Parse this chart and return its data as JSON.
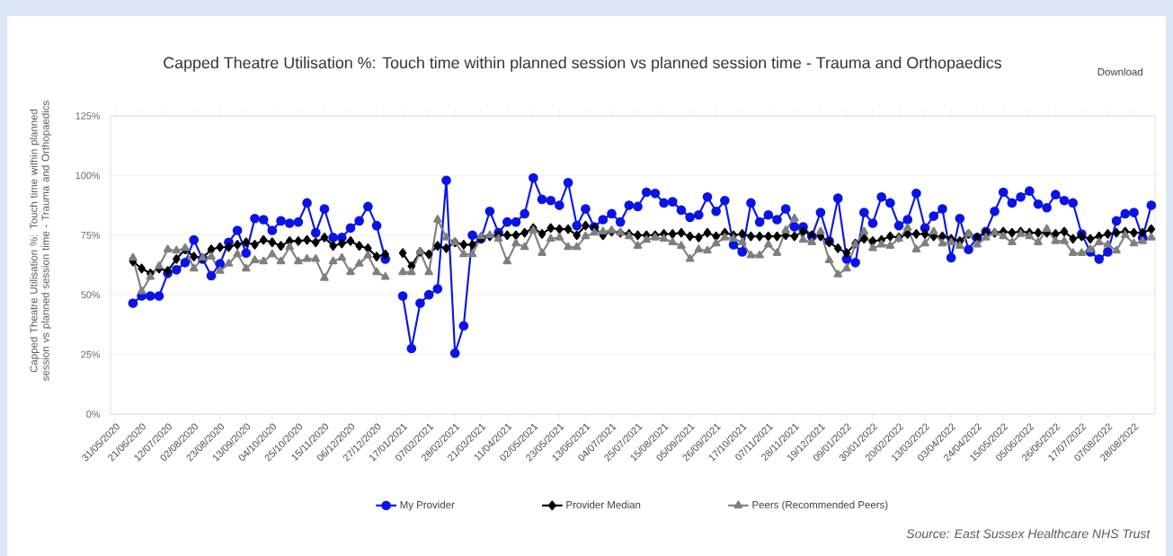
{
  "chart_data": {
    "type": "line",
    "title": "Capped Theatre Utilisation %: Touch time within planned session vs planned session time - Trauma and Orthopaedics",
    "ylabel": "Capped Theatre Utilisation %: Touch time within planned session vs planned session time - Trauma and Orthopaedics",
    "annotations": [
      "Download",
      "Source: East Sussex Healthcare NHS Trust"
    ],
    "x": [
      "2020-06-14",
      "2020-06-21",
      "2020-06-28",
      "2020-07-05",
      "2020-07-12",
      "2020-07-19",
      "2020-07-26",
      "2020-08-02",
      "2020-08-09",
      "2020-08-16",
      "2020-08-23",
      "2020-08-30",
      "2020-09-06",
      "2020-09-13",
      "2020-09-20",
      "2020-09-27",
      "2020-10-04",
      "2020-10-11",
      "2020-10-18",
      "2020-10-25",
      "2020-11-01",
      "2020-11-08",
      "2020-11-15",
      "2020-11-22",
      "2020-11-29",
      "2020-12-06",
      "2020-12-13",
      "2020-12-20",
      "2020-12-27",
      "2021-01-03",
      "2021-01-10",
      "2021-01-17",
      "2021-01-24",
      "2021-01-31",
      "2021-02-07",
      "2021-02-14",
      "2021-02-21",
      "2021-02-28",
      "2021-03-07",
      "2021-03-14",
      "2021-03-21",
      "2021-03-28",
      "2021-04-04",
      "2021-04-11",
      "2021-04-18",
      "2021-04-25",
      "2021-05-02",
      "2021-05-09",
      "2021-05-16",
      "2021-05-23",
      "2021-05-30",
      "2021-06-06",
      "2021-06-13",
      "2021-06-20",
      "2021-06-27",
      "2021-07-04",
      "2021-07-11",
      "2021-07-18",
      "2021-07-25",
      "2021-08-01",
      "2021-08-08",
      "2021-08-15",
      "2021-08-22",
      "2021-08-29",
      "2021-09-05",
      "2021-09-12",
      "2021-09-19",
      "2021-09-26",
      "2021-10-03",
      "2021-10-10",
      "2021-10-17",
      "2021-10-24",
      "2021-10-31",
      "2021-11-07",
      "2021-11-14",
      "2021-11-21",
      "2021-11-28",
      "2021-12-05",
      "2021-12-12",
      "2021-12-19",
      "2021-12-26",
      "2022-01-02",
      "2022-01-09",
      "2022-01-16",
      "2022-01-23",
      "2022-01-30",
      "2022-02-06",
      "2022-02-13",
      "2022-02-20",
      "2022-02-27",
      "2022-03-06",
      "2022-03-13",
      "2022-03-20",
      "2022-03-27",
      "2022-04-03",
      "2022-04-10",
      "2022-04-17",
      "2022-04-24",
      "2022-05-01",
      "2022-05-08",
      "2022-05-15",
      "2022-05-22",
      "2022-05-29",
      "2022-06-05",
      "2022-06-12",
      "2022-06-19",
      "2022-06-26",
      "2022-07-03",
      "2022-07-10",
      "2022-07-17",
      "2022-07-24",
      "2022-07-31",
      "2022-08-07",
      "2022-08-14",
      "2022-08-21",
      "2022-08-28",
      "2022-09-04",
      "2022-09-11"
    ],
    "series": [
      {
        "name": "My Provider",
        "color": "#0a14e6",
        "marker": "circle",
        "values": [
          46.5,
          49.5,
          49.5,
          49.5,
          59,
          60.5,
          63.5,
          73,
          65,
          58,
          63,
          72,
          77,
          67.5,
          82,
          81.5,
          77,
          81,
          80,
          80.5,
          88.5,
          76,
          86,
          74,
          74,
          78,
          81,
          87,
          79,
          65,
          null,
          49.5,
          27.5,
          46.5,
          50,
          52.5,
          98,
          25.5,
          37,
          75,
          73.5,
          85,
          76,
          80.5,
          80.5,
          84,
          99,
          90,
          89.5,
          87.5,
          97,
          79,
          86,
          78.5,
          81.5,
          84,
          80.5,
          87.5,
          87,
          93,
          92.5,
          88.5,
          89,
          85.5,
          82.5,
          83.5,
          91,
          85,
          89.5,
          71,
          68,
          88.5,
          80.5,
          83.5,
          81.5,
          86,
          78.5,
          78.5,
          74.5,
          84.5,
          72.5,
          90.5,
          65,
          63.5,
          84.5,
          80,
          91,
          88.5,
          79,
          81.5,
          92.5,
          78,
          83,
          86,
          65.5,
          82,
          69,
          74,
          76.5,
          85,
          93,
          88.5,
          91,
          93.5,
          88,
          86.5,
          92,
          89.5,
          88.5,
          75.5,
          68,
          65,
          68,
          81,
          84,
          84.5,
          74,
          87.5
        ]
      },
      {
        "name": "Provider Median",
        "color": "#000000",
        "marker": "diamond",
        "values": [
          64,
          61,
          59,
          61,
          60,
          65,
          69,
          66,
          65.5,
          69,
          70,
          70,
          71,
          72,
          71,
          73,
          72,
          70.5,
          72.5,
          72.5,
          73,
          72,
          74,
          70.5,
          71.5,
          72.5,
          70.5,
          69.5,
          66,
          67,
          null,
          67.5,
          62,
          68,
          67,
          70.5,
          69.5,
          72,
          71,
          71,
          73.5,
          74.5,
          75,
          75,
          75,
          76,
          78,
          75.5,
          78,
          77.5,
          77.5,
          75,
          79,
          78,
          75,
          76.5,
          76,
          75.5,
          75,
          75,
          75,
          75.5,
          75.5,
          76,
          74.5,
          74,
          76,
          74.5,
          76,
          75,
          75.5,
          74.5,
          74.5,
          74.5,
          74.5,
          75,
          74.5,
          76.5,
          75,
          74.5,
          72,
          69.5,
          67.5,
          71.5,
          73.5,
          72.5,
          73,
          74.5,
          74,
          75.5,
          75.5,
          75.5,
          74.5,
          74.5,
          73.5,
          72.5,
          75.5,
          74,
          76,
          76,
          76.5,
          76,
          76.5,
          76,
          76,
          76,
          75.5,
          76.5,
          73.5,
          74.5,
          73.5,
          74.5,
          75.5,
          76,
          76.5,
          76,
          76,
          77.5
        ]
      },
      {
        "name": "Peers (Recommended Peers)",
        "color": "#7f7f7f",
        "marker": "triangle",
        "values": [
          65.5,
          51.5,
          57.5,
          62,
          69,
          68.5,
          69.5,
          61,
          65.5,
          66,
          60,
          63,
          67,
          61,
          64.5,
          64,
          67,
          64,
          70,
          64,
          65,
          65,
          57,
          64,
          65.5,
          59.5,
          63,
          66.5,
          59.5,
          57.5,
          null,
          59.5,
          59.5,
          68,
          59.5,
          81.5,
          74,
          72,
          67,
          67,
          74.5,
          75,
          73.5,
          64,
          71.5,
          70,
          77,
          67.5,
          73.5,
          74,
          70,
          70,
          74.5,
          76,
          76.5,
          77,
          76,
          74.5,
          70.5,
          73,
          74,
          73.5,
          72,
          70.5,
          65,
          69,
          68.5,
          71.5,
          74,
          73.5,
          72,
          66.5,
          66.5,
          71,
          67.5,
          77,
          82,
          73,
          72,
          76.5,
          64.5,
          58.5,
          61,
          71,
          76.5,
          69.5,
          71,
          70.5,
          73.5,
          78,
          69,
          71.5,
          76.5,
          71.5,
          72,
          70.5,
          75.5,
          71,
          74,
          76,
          74.5,
          72,
          75.5,
          74.5,
          72,
          77.5,
          72.5,
          72.5,
          67.5,
          67.5,
          69,
          72,
          71,
          68.5,
          75,
          71.5,
          72.5,
          74
        ]
      }
    ],
    "xlim": [
      "2020-05-27",
      "2022-09-14"
    ],
    "xticks": [
      {
        "value": "2020-05-31",
        "label": "31/05/2020"
      },
      {
        "value": "2020-06-21",
        "label": "21/06/2020"
      },
      {
        "value": "2020-07-12",
        "label": "12/07/2020"
      },
      {
        "value": "2020-08-02",
        "label": "02/08/2020"
      },
      {
        "value": "2020-08-23",
        "label": "23/08/2020"
      },
      {
        "value": "2020-09-13",
        "label": "13/09/2020"
      },
      {
        "value": "2020-10-04",
        "label": "04/10/2020"
      },
      {
        "value": "2020-10-25",
        "label": "25/10/2020"
      },
      {
        "value": "2020-11-15",
        "label": "15/11/2020"
      },
      {
        "value": "2020-12-06",
        "label": "06/12/2020"
      },
      {
        "value": "2020-12-27",
        "label": "27/12/2020"
      },
      {
        "value": "2021-01-17",
        "label": "17/01/2021"
      },
      {
        "value": "2021-02-07",
        "label": "07/02/2021"
      },
      {
        "value": "2021-02-28",
        "label": "28/02/2021"
      },
      {
        "value": "2021-03-21",
        "label": "21/03/2021"
      },
      {
        "value": "2021-04-11",
        "label": "11/04/2021"
      },
      {
        "value": "2021-05-02",
        "label": "02/05/2021"
      },
      {
        "value": "2021-05-23",
        "label": "23/05/2021"
      },
      {
        "value": "2021-06-13",
        "label": "13/06/2021"
      },
      {
        "value": "2021-07-04",
        "label": "04/07/2021"
      },
      {
        "value": "2021-07-25",
        "label": "25/07/2021"
      },
      {
        "value": "2021-08-15",
        "label": "15/08/2021"
      },
      {
        "value": "2021-09-05",
        "label": "05/09/2021"
      },
      {
        "value": "2021-09-26",
        "label": "26/09/2021"
      },
      {
        "value": "2021-10-17",
        "label": "17/10/2021"
      },
      {
        "value": "2021-11-07",
        "label": "07/11/2021"
      },
      {
        "value": "2021-11-28",
        "label": "28/11/2021"
      },
      {
        "value": "2021-12-19",
        "label": "19/12/2021"
      },
      {
        "value": "2022-01-09",
        "label": "09/01/2022"
      },
      {
        "value": "2022-01-30",
        "label": "30/01/2022"
      },
      {
        "value": "2022-02-20",
        "label": "20/02/2022"
      },
      {
        "value": "2022-03-13",
        "label": "13/03/2022"
      },
      {
        "value": "2022-04-03",
        "label": "03/04/2022"
      },
      {
        "value": "2022-04-24",
        "label": "24/04/2022"
      },
      {
        "value": "2022-05-15",
        "label": "15/05/2022"
      },
      {
        "value": "2022-06-05",
        "label": "05/06/2022"
      },
      {
        "value": "2022-06-26",
        "label": "26/06/2022"
      },
      {
        "value": "2022-07-17",
        "label": "17/07/2022"
      },
      {
        "value": "2022-08-07",
        "label": "07/08/2022"
      },
      {
        "value": "2022-08-28",
        "label": "28/08/2022"
      }
    ],
    "ylim": [
      0,
      125
    ],
    "yticks": [
      {
        "value": 0,
        "label": "0%"
      },
      {
        "value": 25,
        "label": "25%"
      },
      {
        "value": 50,
        "label": "50%"
      },
      {
        "value": 75,
        "label": "75%"
      },
      {
        "value": 100,
        "label": "100%"
      },
      {
        "value": 125,
        "label": "125%"
      }
    ],
    "grid": "y",
    "legend": "bottom",
    "line_style": "solid"
  }
}
